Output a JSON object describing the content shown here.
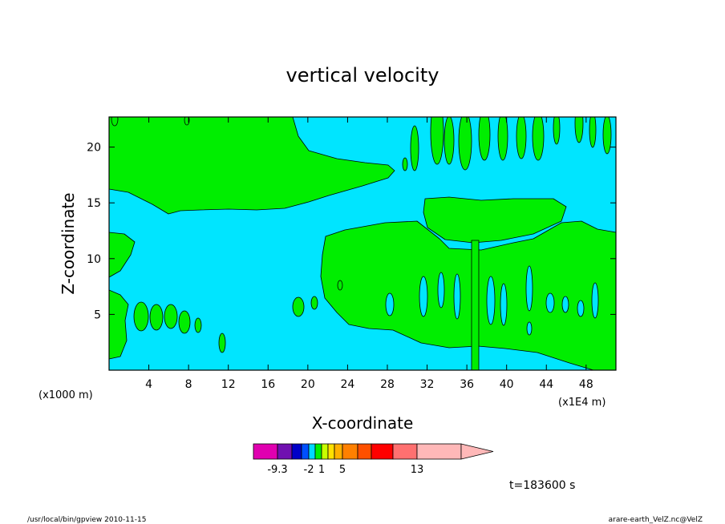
{
  "chart_data": {
    "type": "heatmap",
    "title": "vertical velocity",
    "xlabel": "X-coordinate",
    "ylabel": "Z-coordinate",
    "x_unit_left": "(x1000 m)",
    "x_unit_right": "(x1E4 m)",
    "xlim": [
      0,
      51
    ],
    "ylim": [
      0,
      22.7
    ],
    "x_ticks": [
      "4",
      "8",
      "12",
      "16",
      "20",
      "24",
      "28",
      "32",
      "36",
      "40",
      "44",
      "48"
    ],
    "x_tick_values": [
      4,
      8,
      12,
      16,
      20,
      24,
      28,
      32,
      36,
      40,
      44,
      48
    ],
    "y_ticks": [
      "5",
      "10",
      "15",
      "20"
    ],
    "y_tick_values": [
      5,
      10,
      15,
      20
    ],
    "background_color": "#00e5ff",
    "upward_color": "#00ee00",
    "colorbar": {
      "colors": [
        "#e000b0",
        "#7010b0",
        "#0000c8",
        "#0050ff",
        "#00d8ff",
        "#00ee00",
        "#c8ff00",
        "#ffe000",
        "#ffb000",
        "#ff8000",
        "#ff5000",
        "#ff0000",
        "#ff7070",
        "#ffb8b8"
      ],
      "labels": [
        "-9.3",
        "-2",
        "1",
        "5",
        "13"
      ],
      "label_boundary_index": [
        1,
        4,
        6,
        9,
        13
      ]
    },
    "time_label": "t=183600 s"
  },
  "footer": {
    "left": "/usr/local/bin/gpview  2010-11-15",
    "right": "arare-earth_VelZ.nc@VelZ"
  }
}
